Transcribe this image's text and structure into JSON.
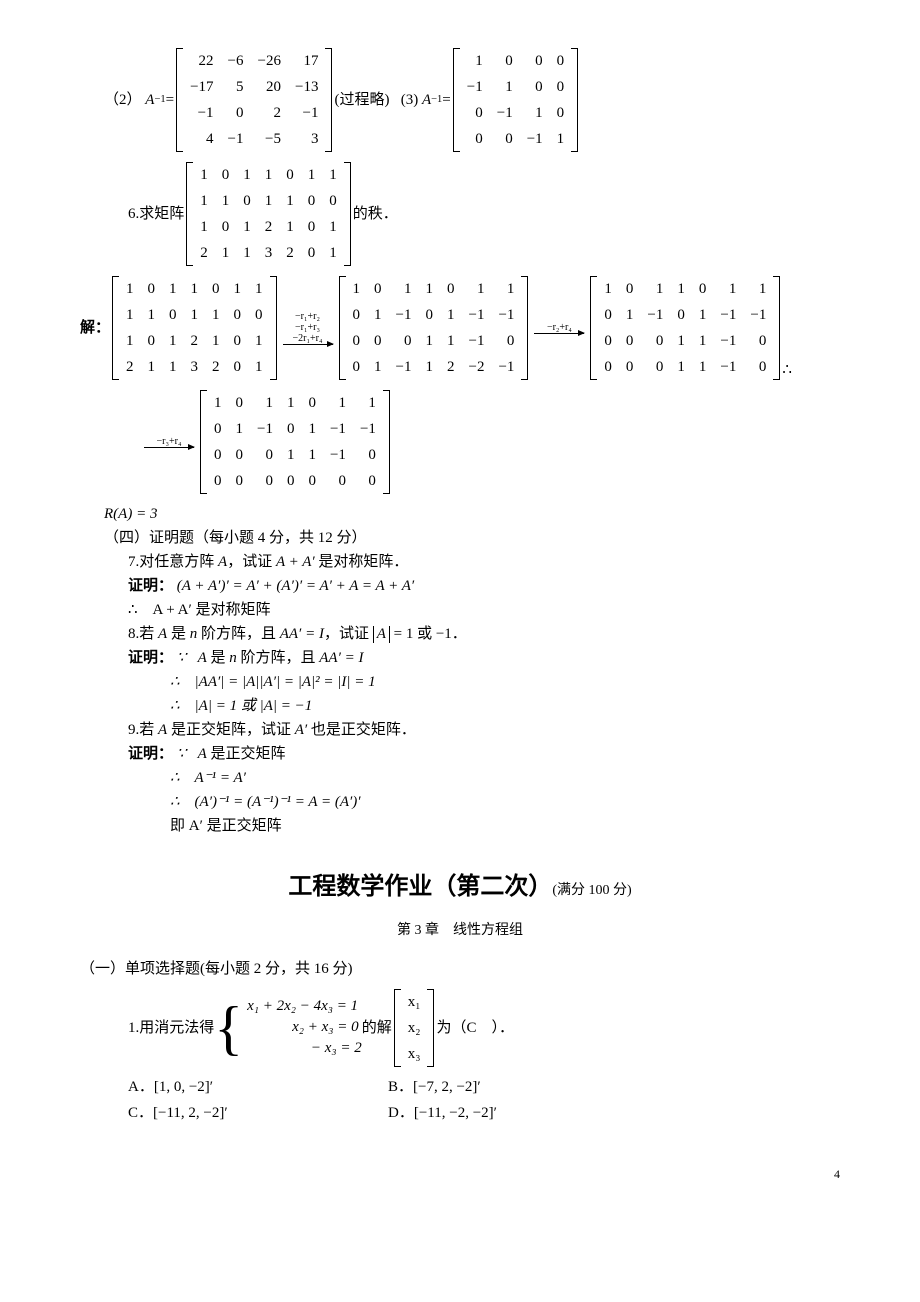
{
  "page_number": "4",
  "q2": {
    "label": "（2）",
    "lhs": "A",
    "sup": "−1",
    "eq": " = ",
    "matrix": [
      [
        "22",
        "−6",
        "−26",
        "17"
      ],
      [
        "−17",
        "5",
        "20",
        "−13"
      ],
      [
        "−1",
        "0",
        "2",
        "−1"
      ],
      [
        "4",
        "−1",
        "−5",
        "3"
      ]
    ],
    "note": "(过程略)"
  },
  "q3": {
    "label": "(3)",
    "lhs": "A",
    "sup": "−1",
    "eq": " = ",
    "matrix": [
      [
        "1",
        "0",
        "0",
        "0"
      ],
      [
        "−1",
        "1",
        "0",
        "0"
      ],
      [
        "0",
        "−1",
        "1",
        "0"
      ],
      [
        "0",
        "0",
        "−1",
        "1"
      ]
    ]
  },
  "q6": {
    "label": "6.求矩阵",
    "matrix": [
      [
        "1",
        "0",
        "1",
        "1",
        "0",
        "1",
        "1"
      ],
      [
        "1",
        "1",
        "0",
        "1",
        "1",
        "0",
        "0"
      ],
      [
        "1",
        "0",
        "1",
        "2",
        "1",
        "0",
        "1"
      ],
      [
        "2",
        "1",
        "1",
        "3",
        "2",
        "0",
        "1"
      ]
    ],
    "tail": "的秩．"
  },
  "sol_label": "解：",
  "m_step0": [
    [
      "1",
      "0",
      "1",
      "1",
      "0",
      "1",
      "1"
    ],
    [
      "1",
      "1",
      "0",
      "1",
      "1",
      "0",
      "0"
    ],
    [
      "1",
      "0",
      "1",
      "2",
      "1",
      "0",
      "1"
    ],
    [
      "2",
      "1",
      "1",
      "3",
      "2",
      "0",
      "1"
    ]
  ],
  "arrow1": [
    "−r₁+r₂",
    "−r₁+r₃",
    "−2r₁+r₄"
  ],
  "m_step1": [
    [
      "1",
      "0",
      "1",
      "1",
      "0",
      "1",
      "1"
    ],
    [
      "0",
      "1",
      "−1",
      "0",
      "1",
      "−1",
      "−1"
    ],
    [
      "0",
      "0",
      "0",
      "1",
      "1",
      "−1",
      "0"
    ],
    [
      "0",
      "1",
      "−1",
      "1",
      "2",
      "−2",
      "−1"
    ]
  ],
  "arrow2": [
    "−r₂+r₄"
  ],
  "m_step2": [
    [
      "1",
      "0",
      "1",
      "1",
      "0",
      "1",
      "1"
    ],
    [
      "0",
      "1",
      "−1",
      "0",
      "1",
      "−1",
      "−1"
    ],
    [
      "0",
      "0",
      "0",
      "1",
      "1",
      "−1",
      "0"
    ],
    [
      "0",
      "0",
      "0",
      "1",
      "1",
      "−1",
      "0"
    ]
  ],
  "arrow3": [
    "−r₃+r₄"
  ],
  "m_step3": [
    [
      "1",
      "0",
      "1",
      "1",
      "0",
      "1",
      "1"
    ],
    [
      "0",
      "1",
      "−1",
      "0",
      "1",
      "−1",
      "−1"
    ],
    [
      "0",
      "0",
      "0",
      "1",
      "1",
      "−1",
      "0"
    ],
    [
      "0",
      "0",
      "0",
      "0",
      "0",
      "0",
      "0"
    ]
  ],
  "therefore": "∴",
  "rank_line": "R(A) = 3",
  "sec4_title": "（四）证明题（每小题 4 分，共 12 分）",
  "p7": {
    "q": "7.对任意方阵 ",
    "qA": "A",
    "q2": "，试证 ",
    "expr": "A + A′",
    "q3": " 是对称矩阵．",
    "proof_label": "证明：",
    "proof_eq": "(A + A′)′ = A′ + (A′)′ = A′ + A = A + A′",
    "concl": "∴　A + A′ 是对称矩阵"
  },
  "p8": {
    "q_a": "8.若 ",
    "qA": "A",
    "q_b": " 是 ",
    "qn": "n",
    "q_c": " 阶方阵，且 ",
    "cond": "AA′ = I",
    "q_d": "，试证 ",
    "detA": "|A|",
    "q_e": " = 1 或 −1．",
    "proof_label": "证明：",
    "because": "∵",
    "line1_a": "A",
    "line1_b": " 是 ",
    "line1_n": "n",
    "line1_c": " 阶方阵，且 ",
    "line1_d": "AA′ = I",
    "line2": "∴　|AA′| = |A||A′| = |A|² = |I| = 1",
    "line3": "∴　|A| = 1 或 |A| = −1"
  },
  "p9": {
    "q_a": "9.若 ",
    "qA": "A",
    "q_b": " 是正交矩阵，试证 ",
    "qAp": "A′",
    "q_c": " 也是正交矩阵．",
    "proof_label": "证明：",
    "because": "∵",
    "line1_a": "A",
    "line1_b": " 是正交矩阵",
    "line2": "∴　A⁻¹ = A′",
    "line3": "∴　(A′)⁻¹ = (A⁻¹)⁻¹ = A = (A′)′",
    "line4": "即 A′ 是正交矩阵"
  },
  "hw2": {
    "title_big": "工程数学作业（第二次）",
    "title_small": "(满分 100 分)",
    "chapter": "第 3 章　线性方程组"
  },
  "sec1_title": "（一）单项选择题(每小题 2 分，共 16 分)",
  "mc1": {
    "stem_a": "1.用消元法得",
    "eq1": "x₁ + 2x₂ − 4x₃ = 1",
    "eq2": "　　　x₂  + x₃ = 0",
    "eq3": "　　　　 − x₃ = 2",
    "mid": " 的解 ",
    "vec": [
      [
        "x₁"
      ],
      [
        "x₂"
      ],
      [
        "x₃"
      ]
    ],
    "tail": " 为（C　）．",
    "optA": "A．[1, 0, −2]′",
    "optB": "B．[−7, 2, −2]′",
    "optC": "C．[−11, 2, −2]′",
    "optD": "D．[−11, −2, −2]′"
  }
}
